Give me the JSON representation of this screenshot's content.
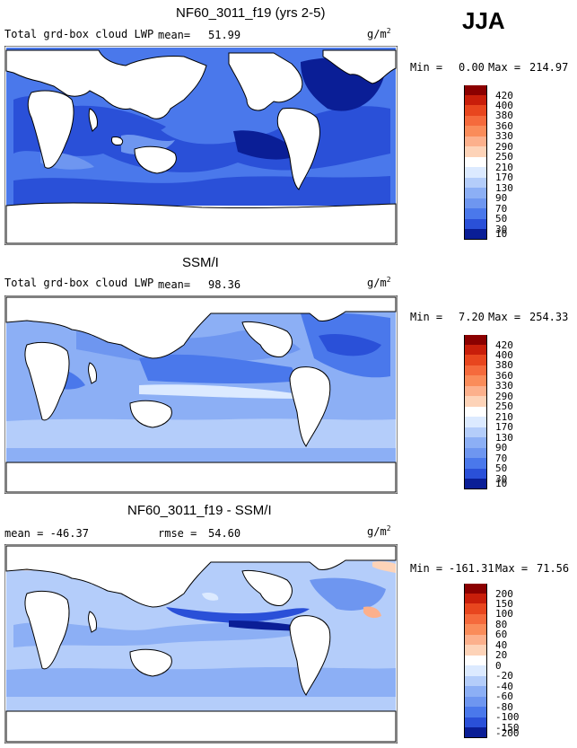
{
  "season": "JJA",
  "panels": [
    {
      "title": "NF60_3011_f19 (yrs 2-5)",
      "left_label": "Total grd-box cloud LWP",
      "stat_label": "mean=",
      "stat_value": "51.99",
      "units": "g/m",
      "units_exp": "2",
      "min_label": "Min =",
      "min_value": "0.00",
      "max_label": "Max =",
      "max_value": "214.97",
      "colorbar": [
        "420",
        "400",
        "380",
        "360",
        "330",
        "290",
        "250",
        "210",
        "170",
        "130",
        "90",
        "70",
        "50",
        "30",
        "10"
      ]
    },
    {
      "title": "SSM/I",
      "left_label": "Total grd-box cloud LWP",
      "stat_label": "mean=",
      "stat_value": "98.36",
      "units": "g/m",
      "units_exp": "2",
      "min_label": "Min =",
      "min_value": "7.20",
      "max_label": "Max =",
      "max_value": "254.33",
      "colorbar": [
        "420",
        "400",
        "380",
        "360",
        "330",
        "290",
        "250",
        "210",
        "170",
        "130",
        "90",
        "70",
        "50",
        "30",
        "10"
      ]
    },
    {
      "title": "NF60_3011_f19 - SSM/I",
      "left_label": "mean = -46.37",
      "stat_label": "rmse =",
      "stat_value": "54.60",
      "units": "g/m",
      "units_exp": "2",
      "min_label": "Min =",
      "min_value": "-161.31",
      "max_label": "Max =",
      "max_value": "71.56",
      "colorbar": [
        "200",
        "150",
        "100",
        "80",
        "60",
        "40",
        "20",
        "0",
        "-20",
        "-40",
        "-60",
        "-80",
        "-100",
        "-150",
        "-200"
      ]
    }
  ],
  "chart_data": [
    {
      "type": "heatmap",
      "title": "NF60_3011_f19 (yrs 2-5)",
      "field": "Total grd-box cloud LWP",
      "season": "JJA",
      "units": "g/m2",
      "mean": 51.99,
      "min": 0.0,
      "max": 214.97,
      "levels": [
        10,
        30,
        50,
        70,
        90,
        130,
        170,
        210,
        250,
        290,
        330,
        360,
        380,
        400,
        420
      ]
    },
    {
      "type": "heatmap",
      "title": "SSM/I",
      "field": "Total grd-box cloud LWP",
      "season": "JJA",
      "units": "g/m2",
      "mean": 98.36,
      "min": 7.2,
      "max": 254.33,
      "levels": [
        10,
        30,
        50,
        70,
        90,
        130,
        170,
        210,
        250,
        290,
        330,
        360,
        380,
        400,
        420
      ]
    },
    {
      "type": "heatmap",
      "title": "NF60_3011_f19 - SSM/I",
      "season": "JJA",
      "units": "g/m2",
      "mean": -46.37,
      "rmse": 54.6,
      "min": -161.31,
      "max": 71.56,
      "levels": [
        -200,
        -150,
        -100,
        -80,
        -60,
        -40,
        -20,
        0,
        20,
        40,
        60,
        80,
        100,
        150,
        200
      ]
    }
  ],
  "colors": {
    "abs_scale": [
      "#8b0000",
      "#c81e0a",
      "#e8461e",
      "#f56a3c",
      "#fa8c5a",
      "#fcb08c",
      "#fdd3b8",
      "#ffffff",
      "#dceaff",
      "#b4cdfa",
      "#8caff5",
      "#6e96f0",
      "#4a78eb",
      "#2a50d8",
      "#0a1e96"
    ],
    "diff_scale": [
      "#8b0000",
      "#c81e0a",
      "#e8461e",
      "#f56a3c",
      "#fa8c5a",
      "#fcb08c",
      "#fdd3b8",
      "#ffffff",
      "#dceaff",
      "#b4cdfa",
      "#8caff5",
      "#6e96f0",
      "#4a78eb",
      "#2a50d8",
      "#0a1e96"
    ]
  }
}
